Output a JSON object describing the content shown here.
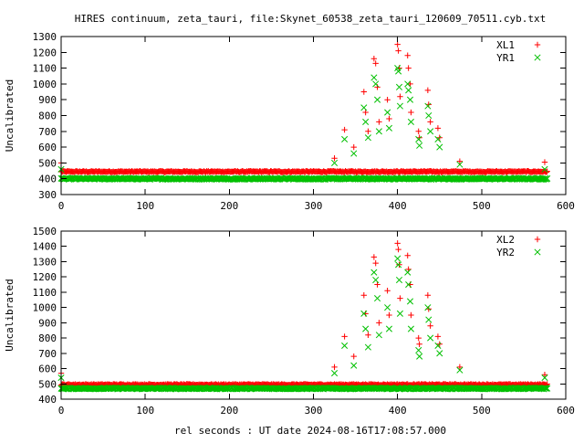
{
  "page_title": "HIRES continuum, zeta_tauri, file:Skynet_60538_zeta_tauri_120609_70511.cyb.txt",
  "xlabel": "rel seconds : UT date 2024-08-16T17:08:57.000",
  "colors": {
    "left_series": "#ff0000",
    "right_series": "#00c000",
    "axis": "#000000",
    "background": "#ffffff"
  },
  "chart_data": [
    {
      "type": "scatter",
      "title": "HIRES continuum, zeta_tauri, file:Skynet_60538_zeta_tauri_120609_70511.cyb.txt",
      "xlabel": "",
      "ylabel": "Uncalibrated",
      "xlim": [
        0,
        600
      ],
      "ylim": [
        300,
        1300
      ],
      "xticks": [
        0,
        100,
        200,
        300,
        400,
        500,
        600
      ],
      "yticks": [
        300,
        400,
        500,
        600,
        700,
        800,
        900,
        1000,
        1100,
        1200,
        1300
      ],
      "grid": false,
      "legend_position": "top-right",
      "baseline_x_range": [
        0,
        578
      ],
      "series": [
        {
          "name": "XL1",
          "marker": "+",
          "color": "#ff0000",
          "baseline": 445,
          "baseline_spread": 8,
          "spikes": [
            [
              0,
              500
            ],
            [
              325,
              530
            ],
            [
              337,
              710
            ],
            [
              348,
              600
            ],
            [
              360,
              950
            ],
            [
              362,
              820
            ],
            [
              365,
              700
            ],
            [
              372,
              1160
            ],
            [
              374,
              1130
            ],
            [
              376,
              980
            ],
            [
              378,
              760
            ],
            [
              388,
              900
            ],
            [
              390,
              780
            ],
            [
              400,
              1250
            ],
            [
              401,
              1210
            ],
            [
              402,
              1100
            ],
            [
              403,
              920
            ],
            [
              412,
              1180
            ],
            [
              413,
              1100
            ],
            [
              415,
              1000
            ],
            [
              416,
              820
            ],
            [
              425,
              700
            ],
            [
              426,
              660
            ],
            [
              436,
              960
            ],
            [
              437,
              870
            ],
            [
              439,
              760
            ],
            [
              448,
              720
            ],
            [
              450,
              660
            ],
            [
              474,
              510
            ],
            [
              575,
              505
            ]
          ]
        },
        {
          "name": "YR1",
          "marker": "x",
          "color": "#00c000",
          "baseline": 400,
          "baseline_spread": 8,
          "spikes": [
            [
              0,
              460
            ],
            [
              325,
              500
            ],
            [
              337,
              650
            ],
            [
              348,
              560
            ],
            [
              360,
              850
            ],
            [
              362,
              760
            ],
            [
              365,
              660
            ],
            [
              372,
              1040
            ],
            [
              374,
              1000
            ],
            [
              376,
              900
            ],
            [
              378,
              700
            ],
            [
              388,
              820
            ],
            [
              390,
              720
            ],
            [
              400,
              1100
            ],
            [
              401,
              1080
            ],
            [
              402,
              980
            ],
            [
              403,
              860
            ],
            [
              412,
              1000
            ],
            [
              413,
              960
            ],
            [
              415,
              900
            ],
            [
              416,
              760
            ],
            [
              425,
              650
            ],
            [
              426,
              610
            ],
            [
              436,
              860
            ],
            [
              437,
              800
            ],
            [
              439,
              700
            ],
            [
              448,
              650
            ],
            [
              450,
              600
            ],
            [
              474,
              490
            ],
            [
              575,
              460
            ]
          ]
        }
      ]
    },
    {
      "type": "scatter",
      "title": "",
      "xlabel": "rel seconds : UT date 2024-08-16T17:08:57.000",
      "ylabel": "Uncalibrated",
      "xlim": [
        0,
        600
      ],
      "ylim": [
        400,
        1500
      ],
      "xticks": [
        0,
        100,
        200,
        300,
        400,
        500,
        600
      ],
      "yticks": [
        400,
        500,
        600,
        700,
        800,
        900,
        1000,
        1100,
        1200,
        1300,
        1400,
        1500
      ],
      "grid": false,
      "legend_position": "top-right",
      "baseline_x_range": [
        0,
        578
      ],
      "series": [
        {
          "name": "XL2",
          "marker": "+",
          "color": "#ff0000",
          "baseline": 495,
          "baseline_spread": 8,
          "spikes": [
            [
              0,
              570
            ],
            [
              325,
              610
            ],
            [
              337,
              810
            ],
            [
              348,
              680
            ],
            [
              360,
              1080
            ],
            [
              362,
              960
            ],
            [
              365,
              820
            ],
            [
              372,
              1330
            ],
            [
              374,
              1290
            ],
            [
              376,
              1150
            ],
            [
              378,
              900
            ],
            [
              388,
              1110
            ],
            [
              390,
              950
            ],
            [
              400,
              1420
            ],
            [
              401,
              1380
            ],
            [
              402,
              1280
            ],
            [
              403,
              1060
            ],
            [
              412,
              1340
            ],
            [
              413,
              1250
            ],
            [
              415,
              1150
            ],
            [
              416,
              950
            ],
            [
              425,
              800
            ],
            [
              426,
              760
            ],
            [
              436,
              1080
            ],
            [
              437,
              990
            ],
            [
              439,
              880
            ],
            [
              448,
              810
            ],
            [
              450,
              760
            ],
            [
              474,
              610
            ],
            [
              575,
              560
            ]
          ]
        },
        {
          "name": "YR2",
          "marker": "x",
          "color": "#00c000",
          "baseline": 470,
          "baseline_spread": 8,
          "spikes": [
            [
              0,
              540
            ],
            [
              325,
              570
            ],
            [
              337,
              750
            ],
            [
              348,
              620
            ],
            [
              360,
              960
            ],
            [
              362,
              860
            ],
            [
              365,
              740
            ],
            [
              372,
              1230
            ],
            [
              374,
              1180
            ],
            [
              376,
              1060
            ],
            [
              378,
              820
            ],
            [
              388,
              1000
            ],
            [
              390,
              860
            ],
            [
              400,
              1320
            ],
            [
              401,
              1280
            ],
            [
              402,
              1180
            ],
            [
              403,
              960
            ],
            [
              412,
              1230
            ],
            [
              413,
              1150
            ],
            [
              415,
              1040
            ],
            [
              416,
              860
            ],
            [
              425,
              720
            ],
            [
              426,
              680
            ],
            [
              436,
              1000
            ],
            [
              437,
              920
            ],
            [
              439,
              800
            ],
            [
              448,
              750
            ],
            [
              450,
              700
            ],
            [
              474,
              590
            ],
            [
              575,
              540
            ]
          ]
        }
      ]
    }
  ]
}
